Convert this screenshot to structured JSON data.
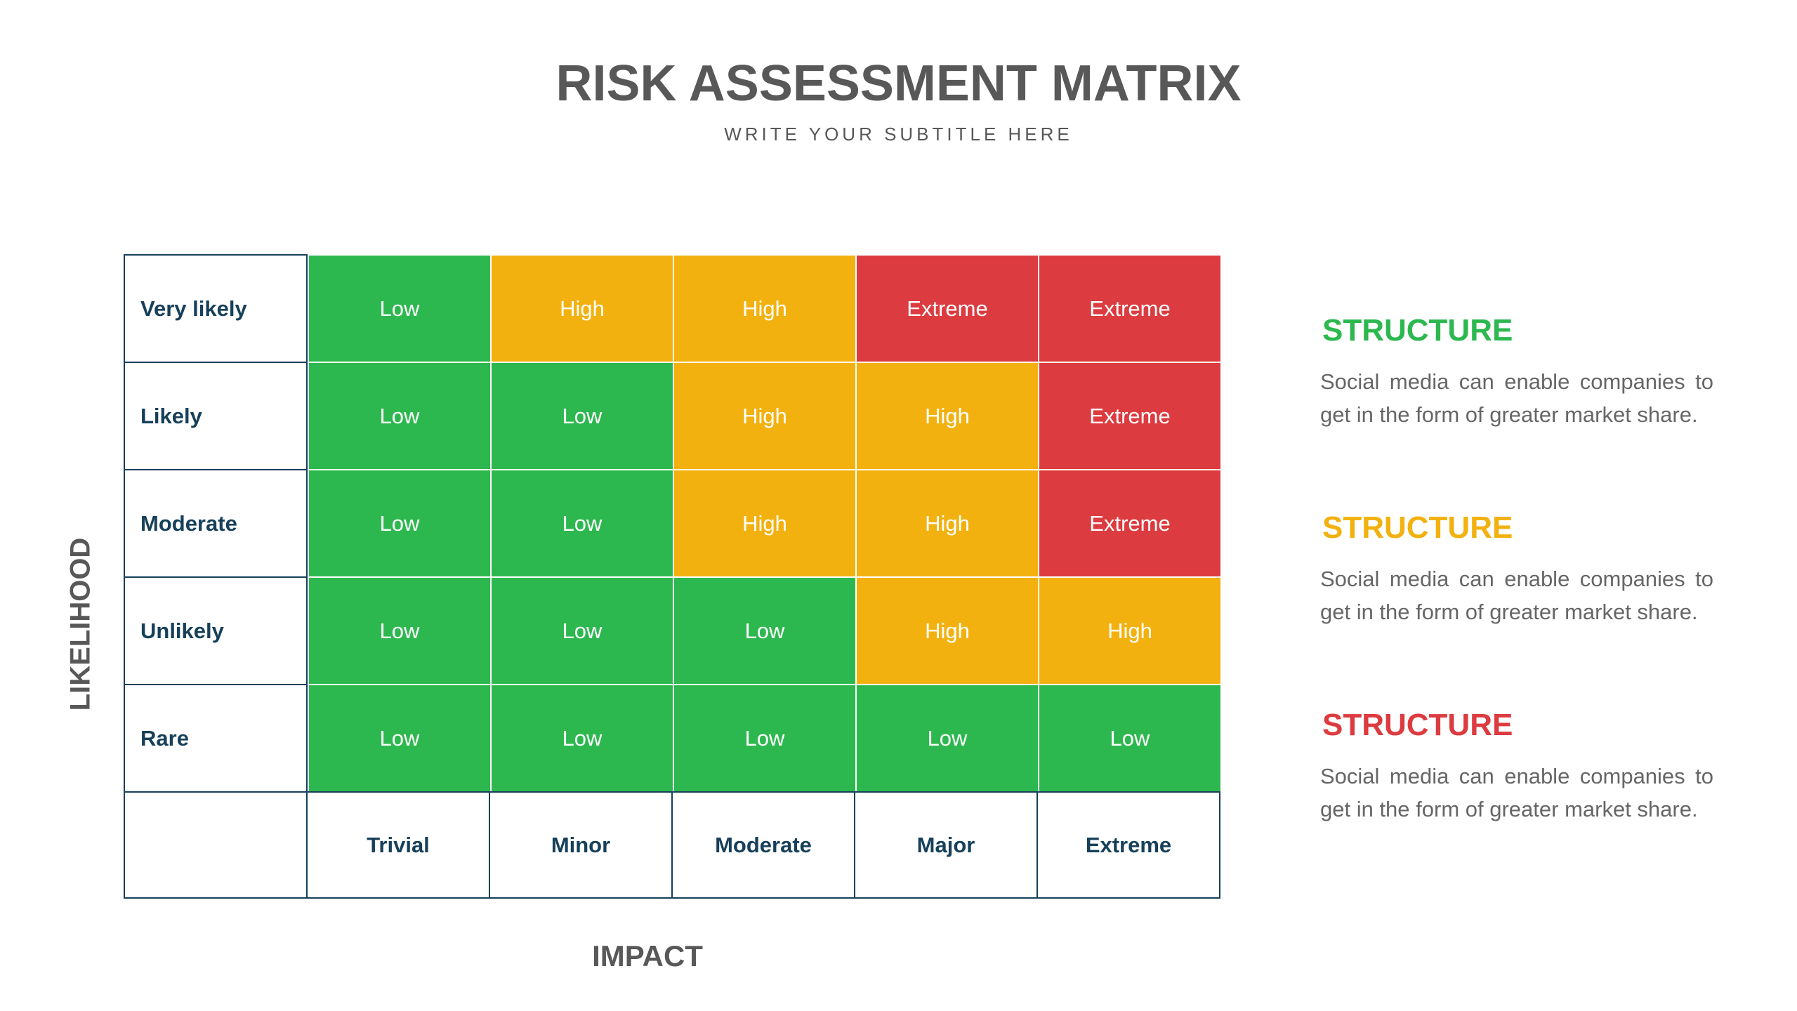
{
  "title": "RISK ASSESSMENT MATRIX",
  "subtitle": "WRITE YOUR SUBTITLE HERE",
  "y_axis_label": "LIKELIHOOD",
  "x_axis_label": "IMPACT",
  "level_colors": {
    "Low": "#2db84f",
    "High": "#f2b10f",
    "Extreme": "#dc3b40"
  },
  "matrix": {
    "columns": [
      "Trivial",
      "Minor",
      "Moderate",
      "Major",
      "Extreme"
    ],
    "rows": [
      {
        "label": "Very likely",
        "cells": [
          "Low",
          "High",
          "High",
          "Extreme",
          "Extreme"
        ]
      },
      {
        "label": "Likely",
        "cells": [
          "Low",
          "Low",
          "High",
          "High",
          "Extreme"
        ]
      },
      {
        "label": "Moderate",
        "cells": [
          "Low",
          "Low",
          "High",
          "High",
          "Extreme"
        ]
      },
      {
        "label": "Unlikely",
        "cells": [
          "Low",
          "Low",
          "Low",
          "High",
          "High"
        ]
      },
      {
        "label": "Rare",
        "cells": [
          "Low",
          "Low",
          "Low",
          "Low",
          "Low"
        ]
      }
    ]
  },
  "sections": [
    {
      "heading": "STRUCTURE",
      "color": "#2db84f",
      "text": "Social media can enable companies to get in the form of greater market share."
    },
    {
      "heading": "STRUCTURE",
      "color": "#f2b10f",
      "text": "Social media can enable companies to get in the form of greater market share."
    },
    {
      "heading": "STRUCTURE",
      "color": "#dc3b40",
      "text": "Social media can enable companies to get in the form of greater market share."
    }
  ]
}
